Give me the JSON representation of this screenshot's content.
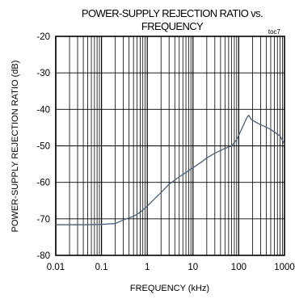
{
  "chart_data": {
    "type": "line",
    "title": [
      "POWER-SUPPLY REJECTION RATIO vs.",
      "FREQUENCY"
    ],
    "tag": "toc7",
    "xlabel": "FREQUENCY (kHz)",
    "ylabel": "POWER-SUPPLY  REJECTION RATIO  (dB)",
    "x_scale": "log",
    "xlim": [
      0.01,
      1000
    ],
    "ylim": [
      -80,
      -20
    ],
    "x_ticks": [
      {
        "value": 0.01,
        "label": "0.01"
      },
      {
        "value": 0.1,
        "label": "0.1"
      },
      {
        "value": 1,
        "label": "1"
      },
      {
        "value": 10,
        "label": "10"
      },
      {
        "value": 100,
        "label": "100"
      },
      {
        "value": 1000,
        "label": "1000"
      }
    ],
    "y_ticks": [
      {
        "value": -20,
        "label": "-20"
      },
      {
        "value": -30,
        "label": "-30"
      },
      {
        "value": -40,
        "label": "-40"
      },
      {
        "value": -50,
        "label": "-50"
      },
      {
        "value": -60,
        "label": "-60"
      },
      {
        "value": -70,
        "label": "-70"
      },
      {
        "value": -80,
        "label": "-80"
      }
    ],
    "grid": true,
    "series": [
      {
        "color": "#4a5f7a",
        "points": [
          [
            0.01,
            -71.6
          ],
          [
            0.02,
            -71.6
          ],
          [
            0.05,
            -71.6
          ],
          [
            0.1,
            -71.5
          ],
          [
            0.2,
            -71.3
          ],
          [
            0.3,
            -70.3
          ],
          [
            0.5,
            -69.3
          ],
          [
            0.7,
            -68.2
          ],
          [
            1,
            -66.5
          ],
          [
            1.5,
            -64.3
          ],
          [
            2,
            -62.8
          ],
          [
            3,
            -60.5
          ],
          [
            5,
            -58.5
          ],
          [
            7,
            -57.3
          ],
          [
            10,
            -56
          ],
          [
            15,
            -54.5
          ],
          [
            20,
            -53.3
          ],
          [
            30,
            -52
          ],
          [
            50,
            -50.7
          ],
          [
            70,
            -50
          ],
          [
            90,
            -48.3
          ],
          [
            110,
            -46
          ],
          [
            130,
            -44
          ],
          [
            150,
            -42.3
          ],
          [
            165,
            -41.6
          ],
          [
            190,
            -42.8
          ],
          [
            220,
            -43.3
          ],
          [
            300,
            -44.2
          ],
          [
            400,
            -44.9
          ],
          [
            500,
            -45.5
          ],
          [
            600,
            -46.2
          ],
          [
            700,
            -46.8
          ],
          [
            800,
            -47.3
          ],
          [
            900,
            -48.5
          ],
          [
            1000,
            -49.6
          ]
        ]
      }
    ]
  }
}
